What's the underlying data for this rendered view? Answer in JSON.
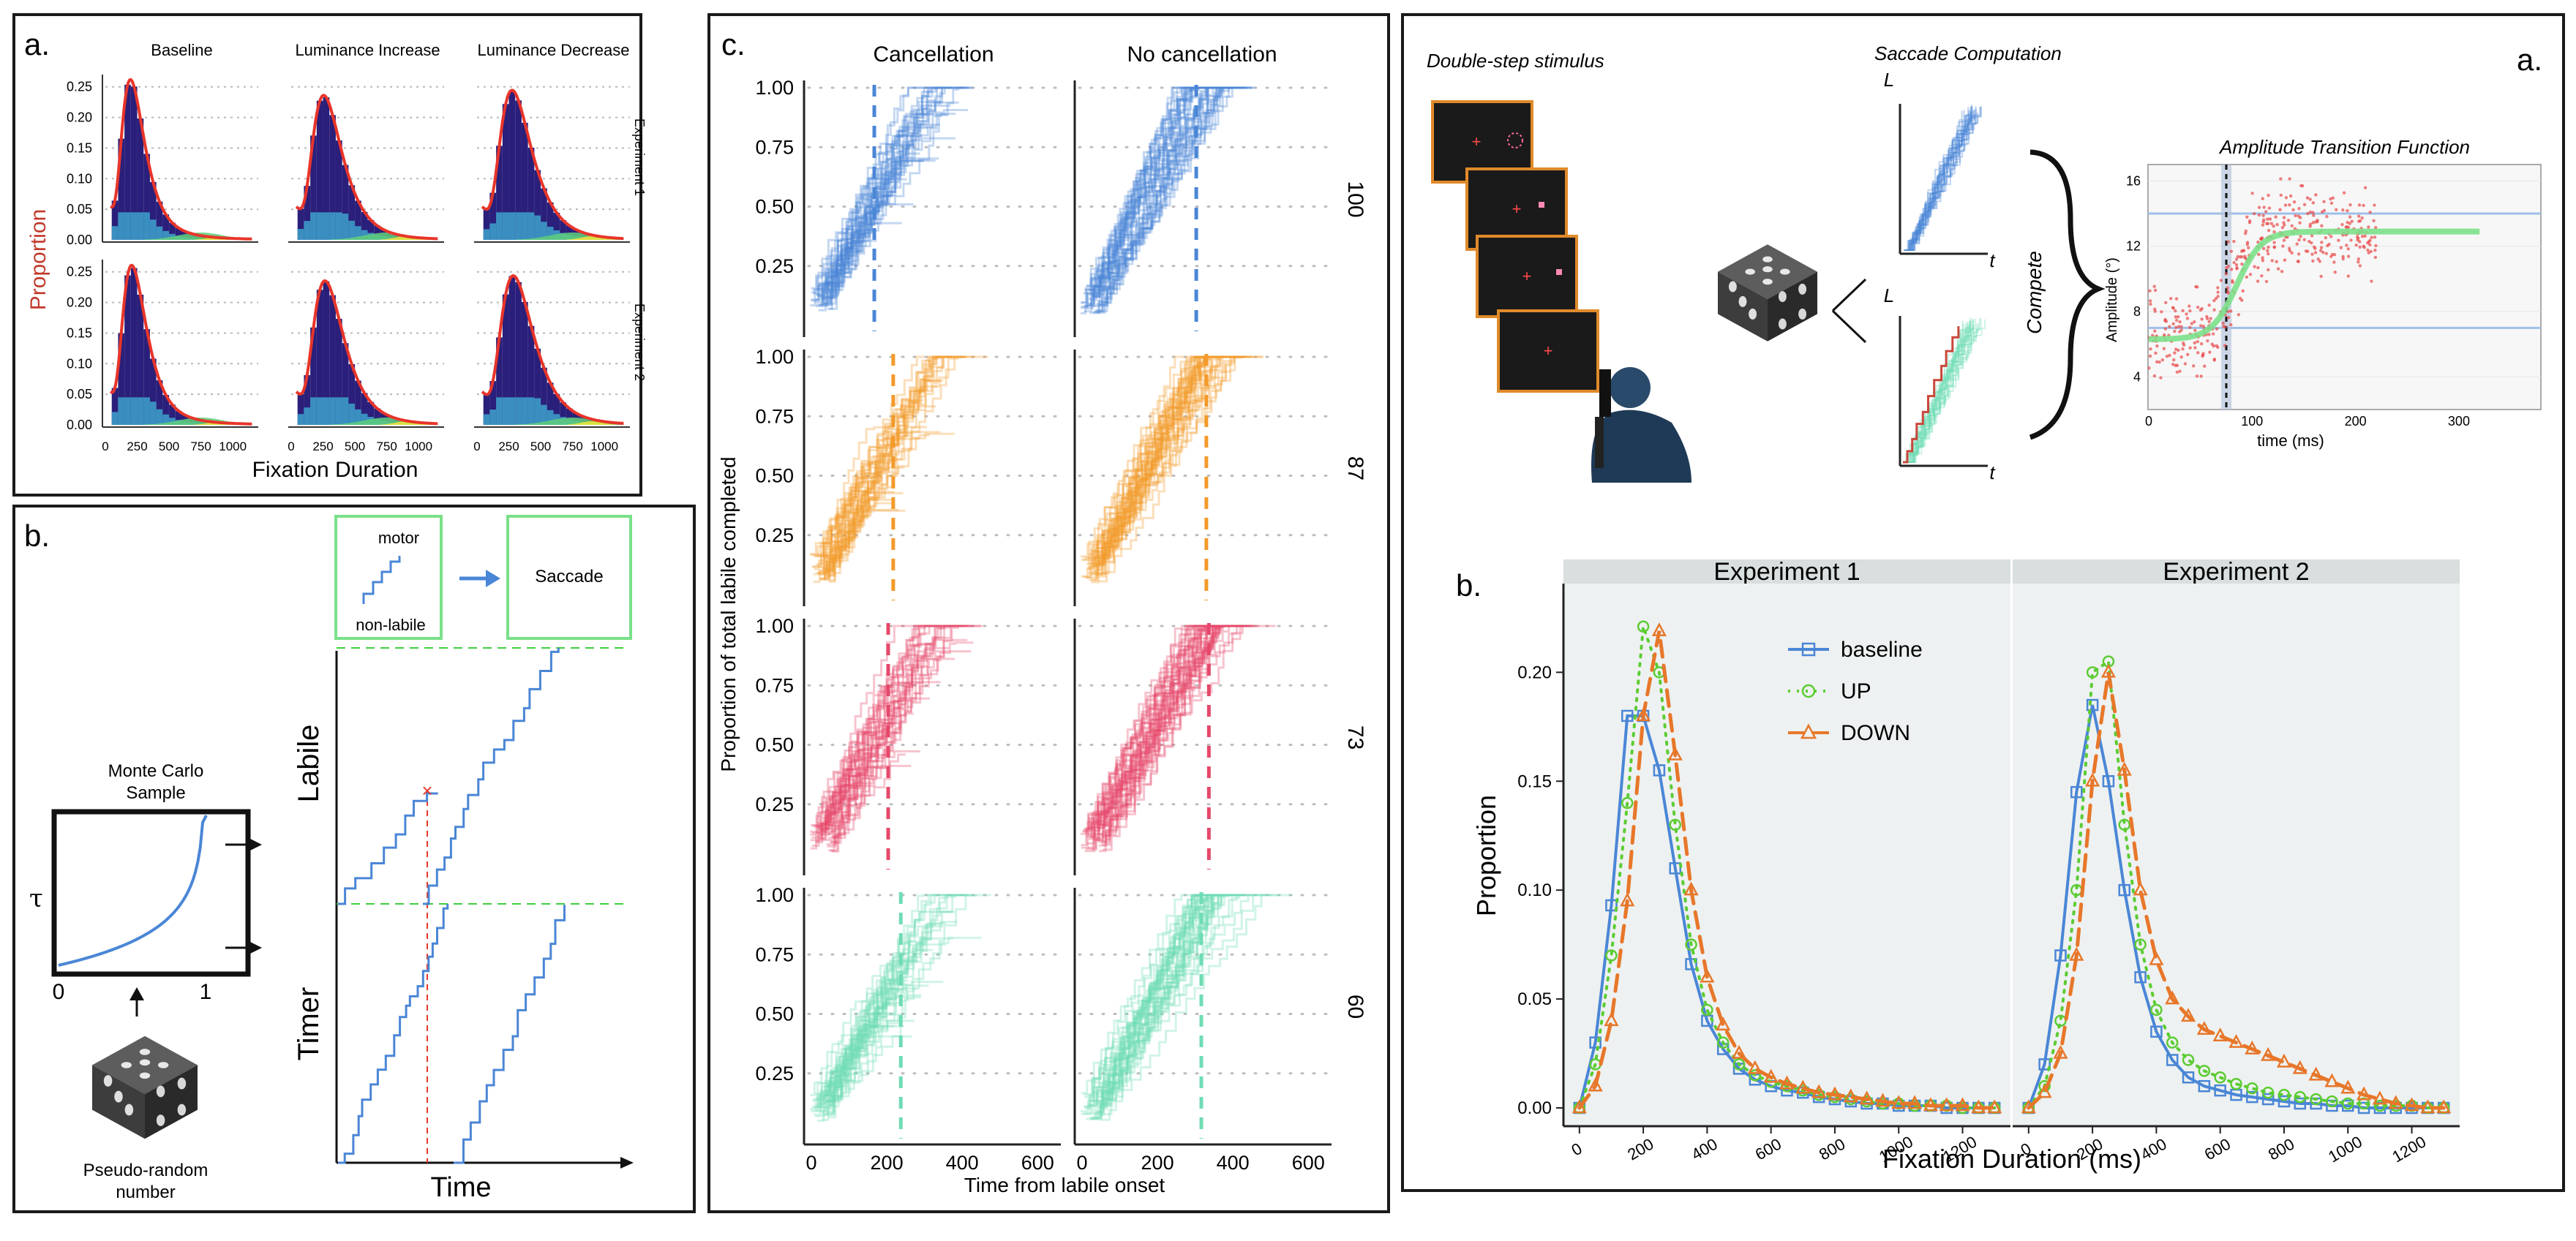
{
  "colors": {
    "blue": "#4a86d6",
    "orange": "#f39a2a",
    "red": "#e5486a",
    "green": "#6fdcb4",
    "hist_navy": "#2a1f7a",
    "hist_teal": "#3a8fc0",
    "hist_green": "#5fcf7a",
    "hist_yellow": "#e8e23a",
    "fit_red": "#e8352a",
    "atf_green": "#7ce08a",
    "panel_bg": "#eef1f1",
    "border": "#1a1a1a"
  },
  "left_a": {
    "letter": "a.",
    "col_titles": [
      "Baseline",
      "Luminance Increase",
      "Luminance Decrease"
    ],
    "row_titles": [
      "Experiment 1",
      "Experiment 2"
    ],
    "ylabel": "Proportion",
    "xlabel": "Fixation Duration",
    "yticks": [
      "0.25",
      "0.20",
      "0.15",
      "0.10",
      "0.05",
      "0.00"
    ],
    "xticks": [
      "0",
      "250",
      "500",
      "750",
      "1000"
    ]
  },
  "left_b": {
    "letter": "b.",
    "motor_label": "motor",
    "nonlabile_label": "non-labile",
    "saccade_label": "Saccade",
    "monte_carlo_label": "Monte Carlo",
    "sample_label": "Sample",
    "tau_label": "τ",
    "x0_label": "0",
    "x1_label": "1",
    "pseudo_label": "Pseudo-random",
    "number_label": "number",
    "labile_label": "Labile",
    "timer_label": "Timer",
    "time_label": "Time"
  },
  "mid_c": {
    "letter": "c.",
    "col_titles": [
      "Cancellation",
      "No cancellation"
    ],
    "row_labels": [
      "100",
      "87",
      "73",
      "60"
    ],
    "ylabel": "Proportion of total labile completed",
    "xlabel": "Time from labile onset",
    "yticks": [
      "1.00",
      "0.75",
      "0.50",
      "0.25"
    ],
    "xticks": [
      "0",
      "200",
      "400",
      "600"
    ]
  },
  "right_a": {
    "letter": "a.",
    "double_step_label": "Double-step stimulus",
    "saccade_comp_label": "Saccade Computation",
    "compete_label": "Compete",
    "L_label": "L",
    "t_label": "t",
    "atf_title": "Amplitude Transition Function",
    "atf_ylabel": "Amplitude (°)",
    "atf_xlabel": "time (ms)",
    "atf_yticks": [
      "16",
      "12",
      "8",
      "4"
    ],
    "atf_xticks": [
      "0",
      "100",
      "200",
      "300"
    ]
  },
  "right_b": {
    "letter": "b.",
    "ylabel": "Proportion",
    "xlabel": "Fixation Duration (ms)",
    "yticks": [
      "0.20",
      "0.15",
      "0.10",
      "0.05",
      "0.00"
    ],
    "xticks": [
      "0",
      "200",
      "400",
      "600",
      "800",
      "1000",
      "1200"
    ],
    "legend": [
      "baseline",
      "UP",
      "DOWN"
    ]
  },
  "chart_data": [
    {
      "id": "fixation_experiment_1",
      "type": "line",
      "title": "Experiment 1",
      "xlabel": "Fixation Duration (ms)",
      "ylabel": "Proportion",
      "xlim": [
        -50,
        1350
      ],
      "ylim": [
        0,
        0.23
      ],
      "x": [
        0,
        50,
        100,
        150,
        200,
        250,
        300,
        350,
        400,
        450,
        500,
        550,
        600,
        650,
        700,
        750,
        800,
        850,
        900,
        950,
        1000,
        1050,
        1100,
        1150,
        1200,
        1250,
        1300
      ],
      "series": [
        {
          "name": "baseline",
          "values": [
            0.0,
            0.03,
            0.093,
            0.18,
            0.18,
            0.155,
            0.11,
            0.066,
            0.04,
            0.027,
            0.018,
            0.013,
            0.01,
            0.008,
            0.007,
            0.005,
            0.004,
            0.003,
            0.002,
            0.002,
            0.001,
            0.001,
            0.001,
            0.0,
            0.0,
            0.0,
            0.0
          ]
        },
        {
          "name": "UP",
          "values": [
            0.0,
            0.02,
            0.07,
            0.14,
            0.221,
            0.2,
            0.13,
            0.075,
            0.045,
            0.03,
            0.02,
            0.015,
            0.012,
            0.01,
            0.008,
            0.006,
            0.005,
            0.004,
            0.003,
            0.002,
            0.002,
            0.001,
            0.001,
            0.001,
            0.0,
            0.0,
            0.0
          ]
        },
        {
          "name": "DOWN",
          "values": [
            0.0,
            0.01,
            0.04,
            0.095,
            0.18,
            0.219,
            0.162,
            0.1,
            0.06,
            0.038,
            0.025,
            0.018,
            0.014,
            0.011,
            0.009,
            0.007,
            0.006,
            0.005,
            0.004,
            0.003,
            0.002,
            0.002,
            0.001,
            0.001,
            0.001,
            0.0,
            0.0
          ]
        }
      ]
    },
    {
      "id": "fixation_experiment_2",
      "type": "line",
      "title": "Experiment 2",
      "xlabel": "Fixation Duration (ms)",
      "ylabel": "Proportion",
      "xlim": [
        -50,
        1350
      ],
      "ylim": [
        0,
        0.23
      ],
      "x": [
        0,
        50,
        100,
        150,
        200,
        250,
        300,
        350,
        400,
        450,
        500,
        550,
        600,
        650,
        700,
        750,
        800,
        850,
        900,
        950,
        1000,
        1050,
        1100,
        1150,
        1200,
        1250,
        1300
      ],
      "series": [
        {
          "name": "baseline",
          "values": [
            0.0,
            0.02,
            0.07,
            0.145,
            0.185,
            0.15,
            0.1,
            0.06,
            0.035,
            0.022,
            0.014,
            0.01,
            0.008,
            0.006,
            0.005,
            0.004,
            0.003,
            0.002,
            0.002,
            0.001,
            0.001,
            0.0,
            0.0,
            0.0,
            0.0,
            0.0,
            0.0
          ]
        },
        {
          "name": "UP",
          "values": [
            0.0,
            0.01,
            0.04,
            0.1,
            0.2,
            0.205,
            0.13,
            0.075,
            0.045,
            0.03,
            0.022,
            0.017,
            0.014,
            0.011,
            0.009,
            0.007,
            0.006,
            0.005,
            0.004,
            0.003,
            0.002,
            0.002,
            0.001,
            0.001,
            0.001,
            0.0,
            0.0
          ]
        },
        {
          "name": "DOWN",
          "values": [
            0.0,
            0.007,
            0.025,
            0.07,
            0.15,
            0.2,
            0.155,
            0.1,
            0.068,
            0.05,
            0.042,
            0.036,
            0.033,
            0.03,
            0.027,
            0.024,
            0.021,
            0.018,
            0.015,
            0.012,
            0.009,
            0.006,
            0.004,
            0.002,
            0.001,
            0.0,
            0.0
          ]
        }
      ]
    }
  ]
}
